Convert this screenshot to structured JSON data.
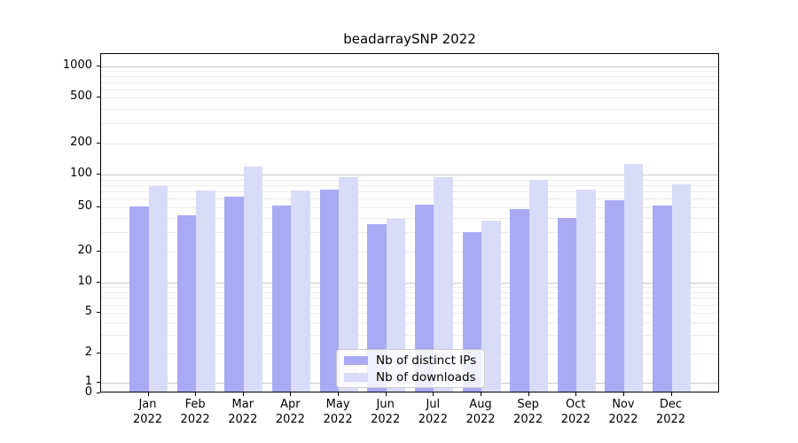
{
  "title": "beadarraySNP 2022",
  "chart_data": {
    "type": "bar",
    "title": "beadarraySNP 2022",
    "categories": [
      "Jan 2022",
      "Feb 2022",
      "Mar 2022",
      "Apr 2022",
      "May 2022",
      "Jun 2022",
      "Jul 2022",
      "Aug 2022",
      "Sep 2022",
      "Oct 2022",
      "Nov 2022",
      "Dec 2022"
    ],
    "series": [
      {
        "name": "Nb of distinct IPs",
        "color": "#a9a9f4",
        "values": [
          51,
          42,
          63,
          52,
          73,
          35,
          53,
          30,
          48,
          40,
          58,
          52
        ]
      },
      {
        "name": "Nb of downloads",
        "color": "#dadaf9",
        "values": [
          78,
          71,
          120,
          71,
          95,
          39,
          95,
          38,
          90,
          72,
          126,
          81
        ]
      }
    ],
    "y_ticks": [
      0,
      1,
      2,
      5,
      10,
      20,
      50,
      100,
      200,
      500,
      1000
    ],
    "y_scale": "symlog",
    "ylim": [
      0,
      1300
    ],
    "grid": true,
    "legend_position": "lower center",
    "grid_color_major": "#c9c9c9",
    "grid_color_minor": "#ebebeb",
    "axis_color": "#000000"
  }
}
